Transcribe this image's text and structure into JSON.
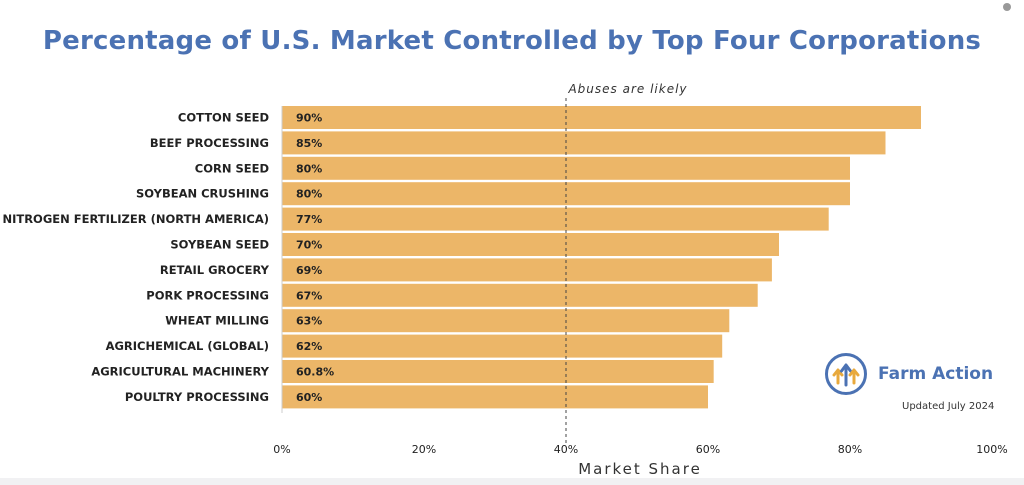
{
  "chart_data": {
    "type": "bar",
    "orientation": "horizontal",
    "title": "Percentage of U.S. Market Controlled by Top Four Corporations",
    "xlabel": "Market Share",
    "ylabel": "",
    "xlim": [
      0,
      100
    ],
    "x_ticks": [
      "0%",
      "20%",
      "40%",
      "60%",
      "80%",
      "100%"
    ],
    "categories": [
      "COTTON SEED",
      "BEEF PROCESSING",
      "CORN SEED",
      "SOYBEAN CRUSHING",
      "NITROGEN FERTILIZER (NORTH AMERICA)",
      "SOYBEAN SEED",
      "RETAIL GROCERY",
      "PORK PROCESSING",
      "WHEAT MILLING",
      "AGRICHEMICAL (GLOBAL)",
      "AGRICULTURAL MACHINERY",
      "POULTRY PROCESSING"
    ],
    "values": [
      90,
      85,
      80,
      80,
      77,
      70,
      69,
      67,
      63,
      62,
      60.8,
      60
    ],
    "value_labels": [
      "90%",
      "85%",
      "80%",
      "80%",
      "77%",
      "70%",
      "69%",
      "67%",
      "63%",
      "62%",
      "60.8%",
      "60%"
    ],
    "threshold": {
      "value": 40,
      "label": "Abuses are likely"
    },
    "grid": false,
    "bar_color": "#ecb668",
    "title_color": "#4b72b3"
  },
  "brand": {
    "name": "Farm Action",
    "updated": "Updated July 2024",
    "logo_icon": "farm-action-arrow-logo-icon"
  }
}
